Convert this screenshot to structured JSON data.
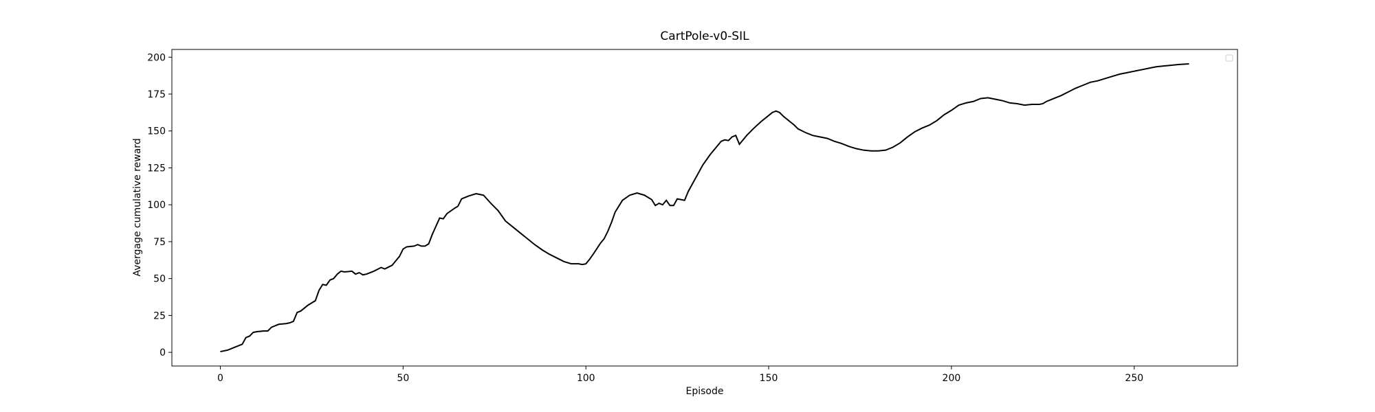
{
  "chart_data": {
    "type": "line",
    "title": "CartPole-v0-SIL",
    "x_label": "Episode",
    "y_label": "Avergage cumulative reward",
    "color": "#000000",
    "x": [
      0,
      2,
      4,
      6,
      7,
      8,
      9,
      10,
      12,
      13,
      14,
      15,
      16,
      18,
      19,
      20,
      21,
      22,
      24,
      26,
      27,
      28,
      29,
      30,
      31,
      32,
      33,
      34,
      36,
      37,
      38,
      39,
      40,
      42,
      44,
      45,
      47,
      49,
      50,
      51,
      53,
      54,
      55,
      56,
      57,
      58,
      60,
      61,
      62,
      64,
      65,
      66,
      67,
      68,
      70,
      72,
      74,
      76,
      78,
      80,
      82,
      84,
      86,
      88,
      90,
      92,
      94,
      96,
      97,
      98,
      99,
      100,
      101,
      102,
      104,
      105,
      106,
      107,
      108,
      110,
      112,
      114,
      116,
      118,
      119,
      120,
      121,
      122,
      123,
      124,
      125,
      127,
      128,
      130,
      132,
      134,
      136,
      137,
      138,
      139,
      140,
      141,
      142,
      144,
      146,
      148,
      150,
      151,
      152,
      153,
      154,
      155,
      156,
      157,
      158,
      160,
      162,
      164,
      166,
      168,
      170,
      172,
      174,
      176,
      178,
      180,
      182,
      184,
      186,
      188,
      190,
      192,
      194,
      196,
      198,
      200,
      202,
      204,
      206,
      208,
      210,
      212,
      214,
      216,
      218,
      220,
      222,
      224,
      225,
      226,
      228,
      230,
      232,
      234,
      236,
      238,
      240,
      242,
      244,
      246,
      248,
      250,
      252,
      254,
      256,
      258,
      260,
      262,
      265
    ],
    "values": [
      0.5,
      1.5,
      3.5,
      5.5,
      10,
      11,
      13.5,
      14,
      14.5,
      14.5,
      17,
      18,
      19,
      19.5,
      20,
      21,
      27,
      28,
      32,
      35,
      42,
      46,
      45.5,
      49,
      50,
      53,
      55,
      54.5,
      55,
      53,
      54,
      52.5,
      53,
      55,
      57.5,
      56.5,
      59,
      65,
      70,
      71.5,
      72,
      73,
      72,
      72,
      73.5,
      80,
      91,
      90.5,
      94,
      97.5,
      99,
      104,
      105,
      106,
      107.5,
      106.5,
      101,
      96,
      89,
      85,
      81,
      77,
      73,
      69.5,
      66.5,
      64,
      61.5,
      60,
      60,
      60,
      59.5,
      60,
      63,
      66.5,
      74,
      77,
      82,
      88,
      95,
      103,
      106.5,
      108,
      106.5,
      103.5,
      99.5,
      101,
      100,
      103,
      99.5,
      99.5,
      104,
      103,
      109,
      118,
      127,
      134,
      140,
      143,
      144,
      143.5,
      146,
      147,
      141,
      147,
      152,
      156.5,
      160.5,
      162.5,
      163.5,
      162.5,
      160,
      158,
      156,
      154,
      151.5,
      149,
      147,
      146,
      145,
      143,
      141.5,
      139.5,
      138,
      137,
      136.5,
      136.5,
      137,
      139,
      142,
      146,
      149.5,
      152,
      154,
      157,
      161,
      164,
      167.5,
      169,
      170,
      172,
      172.5,
      171.5,
      170.5,
      169,
      168.5,
      167.5,
      168,
      168,
      168.5,
      170,
      172,
      174,
      176.5,
      179,
      181,
      183,
      184,
      185.5,
      187,
      188.5,
      189.5,
      190.5,
      191.5,
      192.5,
      193.5,
      194,
      194.5,
      195,
      195.5
    ],
    "xlim": [
      -13.25,
      278.25
    ],
    "ylim": [
      -9.25,
      205.25
    ],
    "xticks": [
      0,
      50,
      100,
      150,
      200,
      250
    ],
    "yticks": [
      0,
      25,
      50,
      75,
      100,
      125,
      150,
      175,
      200
    ]
  }
}
